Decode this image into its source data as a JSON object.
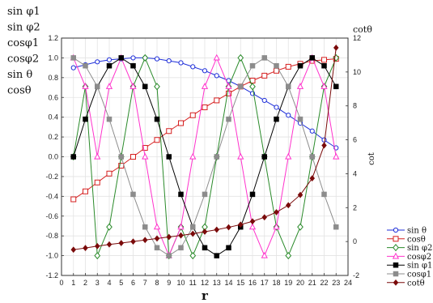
{
  "chart_data": {
    "type": "line",
    "xlabel": "r",
    "ylabel_left_lines": [
      "sin φ1",
      "sin φ2",
      "cosφ1",
      "cosφ2",
      "sin θ",
      "cosθ"
    ],
    "ylabel_right_top": "cotθ",
    "ylabel_right_side": "cot",
    "x": [
      1,
      2,
      3,
      4,
      5,
      6,
      7,
      8,
      9,
      10,
      11,
      12,
      13,
      14,
      15,
      16,
      17,
      18,
      19,
      20,
      21,
      22,
      23
    ],
    "xlim": [
      0,
      24
    ],
    "xticks": [
      "0",
      "1",
      "2",
      "3",
      "4",
      "5",
      "6",
      "7",
      "8",
      "9",
      "10",
      "11",
      "12",
      "13",
      "14",
      "15",
      "16",
      "17",
      "18",
      "19",
      "20",
      "21",
      "22",
      "23",
      "24"
    ],
    "ylim_left": [
      -1.2,
      1.2
    ],
    "yticks_left": [
      "-1.2",
      "-1.0",
      "-0.8",
      "-0.6",
      "-0.4",
      "-0.2",
      "0.0",
      "0.2",
      "0.4",
      "0.6",
      "0.8",
      "1.0",
      "1.2"
    ],
    "ylim_right": [
      -2,
      12
    ],
    "yticks_right": [
      "-2",
      "0",
      "2",
      "4",
      "6",
      "8",
      "10",
      "12"
    ],
    "grid": true,
    "legend_position": "bottom-right",
    "series": [
      {
        "name": "sin θ",
        "axis": "left",
        "color": "#1f2fd9",
        "marker": "circle-open",
        "values": [
          0.9,
          0.93,
          0.96,
          0.98,
          0.99,
          1.0,
          1.0,
          0.99,
          0.97,
          0.95,
          0.91,
          0.87,
          0.82,
          0.77,
          0.71,
          0.64,
          0.57,
          0.5,
          0.42,
          0.34,
          0.26,
          0.17,
          0.09
        ]
      },
      {
        "name": "cosθ",
        "axis": "left",
        "color": "#d62020",
        "marker": "square-open",
        "values": [
          -0.43,
          -0.35,
          -0.26,
          -0.17,
          -0.09,
          0.0,
          0.09,
          0.17,
          0.26,
          0.34,
          0.42,
          0.5,
          0.57,
          0.64,
          0.71,
          0.77,
          0.82,
          0.87,
          0.91,
          0.94,
          0.97,
          0.98,
          0.99
        ]
      },
      {
        "name": "sin φ2",
        "axis": "left",
        "color": "#2a8a2a",
        "marker": "diamond-open",
        "values": [
          0.0,
          0.71,
          -1.0,
          -0.71,
          0.0,
          0.71,
          1.0,
          0.71,
          -1.0,
          -0.71,
          -1.0,
          -0.71,
          0.0,
          0.71,
          1.0,
          0.71,
          0.0,
          -0.71,
          -1.0,
          -0.71,
          0.0,
          0.71,
          1.0
        ]
      },
      {
        "name": "cosφ2",
        "axis": "left",
        "color": "#ff33cc",
        "marker": "triangle-open",
        "values": [
          1.0,
          0.71,
          0.0,
          0.71,
          1.0,
          0.71,
          0.0,
          -0.71,
          -1.0,
          -0.71,
          0.0,
          0.71,
          1.0,
          0.71,
          0.0,
          -0.71,
          -1.0,
          -0.71,
          0.0,
          0.71,
          1.0,
          0.71,
          0.0
        ]
      },
      {
        "name": "sin φ1",
        "axis": "left",
        "color": "#000000",
        "marker": "square-filled",
        "values": [
          0.0,
          0.38,
          0.71,
          0.92,
          1.0,
          0.92,
          0.71,
          0.38,
          0.0,
          -0.38,
          -0.71,
          -0.92,
          -1.0,
          -0.92,
          -0.71,
          -0.38,
          0.0,
          0.38,
          0.71,
          0.92,
          1.0,
          0.92,
          0.71
        ]
      },
      {
        "name": "cosφ1",
        "axis": "left",
        "color": "#8c8c8c",
        "marker": "square-filled",
        "values": [
          1.0,
          0.92,
          0.71,
          0.38,
          0.0,
          -0.38,
          -0.71,
          -0.92,
          -1.0,
          -0.92,
          -0.71,
          -0.38,
          0.0,
          0.38,
          0.71,
          0.92,
          1.0,
          0.92,
          0.71,
          0.38,
          0.0,
          -0.38,
          -0.71
        ]
      },
      {
        "name": "cotθ",
        "axis": "right",
        "color": "#7a0a0a",
        "marker": "diamond-filled",
        "values": [
          -0.48,
          -0.38,
          -0.27,
          -0.17,
          -0.09,
          0.0,
          0.09,
          0.18,
          0.27,
          0.36,
          0.46,
          0.58,
          0.7,
          0.84,
          1.0,
          1.19,
          1.43,
          1.73,
          2.14,
          2.75,
          3.73,
          5.67,
          11.43
        ]
      }
    ]
  }
}
